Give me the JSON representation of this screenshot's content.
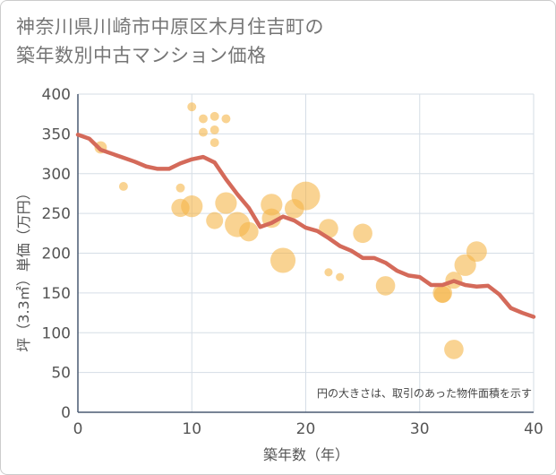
{
  "title_line1": "神奈川県川崎市中原区木月住吉町の",
  "title_line2": "築年数別中古マンション価格",
  "chart_data": {
    "type": "scatter",
    "xlabel": "築年数（年）",
    "ylabel": "坪（3.3㎡）単価（万円）",
    "xlim": [
      0,
      40
    ],
    "ylim": [
      0,
      400
    ],
    "xticks": [
      0,
      10,
      20,
      30,
      40
    ],
    "yticks": [
      0,
      50,
      100,
      150,
      200,
      250,
      300,
      350,
      400
    ],
    "grid": true,
    "note": "円の大きさは、取引のあった物件面積を示す",
    "colors": {
      "bubble": "#f5b54a",
      "line": "#d46a5a",
      "grid": "#d5dde6",
      "axis": "#4a5a72"
    },
    "points": [
      {
        "x": 2,
        "y": 333,
        "s": 0.3
      },
      {
        "x": 4,
        "y": 284,
        "s": 0.15
      },
      {
        "x": 9,
        "y": 282,
        "s": 0.15
      },
      {
        "x": 9,
        "y": 257,
        "s": 0.55
      },
      {
        "x": 10,
        "y": 384,
        "s": 0.15
      },
      {
        "x": 10,
        "y": 259,
        "s": 0.7
      },
      {
        "x": 11,
        "y": 369,
        "s": 0.15
      },
      {
        "x": 11,
        "y": 352,
        "s": 0.15
      },
      {
        "x": 12,
        "y": 372,
        "s": 0.15
      },
      {
        "x": 12,
        "y": 355,
        "s": 0.15
      },
      {
        "x": 12,
        "y": 339,
        "s": 0.15
      },
      {
        "x": 12,
        "y": 241,
        "s": 0.5
      },
      {
        "x": 13,
        "y": 369,
        "s": 0.15
      },
      {
        "x": 13,
        "y": 263,
        "s": 0.7
      },
      {
        "x": 14,
        "y": 236,
        "s": 0.85
      },
      {
        "x": 15,
        "y": 227,
        "s": 0.6
      },
      {
        "x": 17,
        "y": 261,
        "s": 0.7
      },
      {
        "x": 17,
        "y": 244,
        "s": 0.6
      },
      {
        "x": 18,
        "y": 191,
        "s": 0.85
      },
      {
        "x": 19,
        "y": 256,
        "s": 0.6
      },
      {
        "x": 20,
        "y": 272,
        "s": 1.0
      },
      {
        "x": 22,
        "y": 176,
        "s": 0.12
      },
      {
        "x": 22,
        "y": 231,
        "s": 0.6
      },
      {
        "x": 23,
        "y": 170,
        "s": 0.12
      },
      {
        "x": 25,
        "y": 225,
        "s": 0.6
      },
      {
        "x": 27,
        "y": 159,
        "s": 0.6
      },
      {
        "x": 32,
        "y": 150,
        "s": 0.6
      },
      {
        "x": 32,
        "y": 148,
        "s": 0.5
      },
      {
        "x": 33,
        "y": 166,
        "s": 0.5
      },
      {
        "x": 33,
        "y": 79,
        "s": 0.6
      },
      {
        "x": 34,
        "y": 185,
        "s": 0.7
      },
      {
        "x": 35,
        "y": 202,
        "s": 0.65
      }
    ],
    "line": {
      "x": [
        0,
        1,
        2,
        3,
        4,
        5,
        6,
        7,
        8,
        9,
        10,
        11,
        12,
        13,
        14,
        15,
        16,
        17,
        18,
        19,
        20,
        21,
        22,
        23,
        24,
        25,
        26,
        27,
        28,
        29,
        30,
        31,
        32,
        33,
        34,
        35,
        36,
        37,
        38,
        39,
        40
      ],
      "y": [
        349,
        344,
        330,
        325,
        320,
        315,
        309,
        306,
        306,
        313,
        318,
        321,
        314,
        293,
        274,
        257,
        233,
        238,
        246,
        241,
        232,
        228,
        219,
        209,
        203,
        194,
        194,
        188,
        178,
        172,
        170,
        160,
        160,
        165,
        160,
        158,
        159,
        148,
        131,
        125,
        120
      ]
    }
  }
}
